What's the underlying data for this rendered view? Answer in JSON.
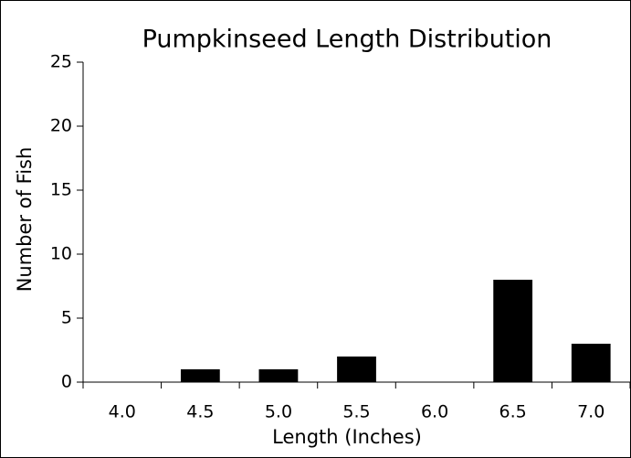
{
  "chart_data": {
    "type": "bar",
    "title": "Pumpkinseed Length Distribution",
    "x_label": "Length (Inches)",
    "y_label": "Number of Fish",
    "categories": [
      "4.0",
      "4.5",
      "5.0",
      "5.5",
      "6.0",
      "6.5",
      "7.0"
    ],
    "values": [
      0,
      1,
      1,
      2,
      0,
      8,
      3
    ],
    "color": "#000000",
    "ylim": [
      0,
      25
    ],
    "yticks": [
      0,
      5,
      10,
      15,
      20,
      25
    ],
    "grid": false
  }
}
